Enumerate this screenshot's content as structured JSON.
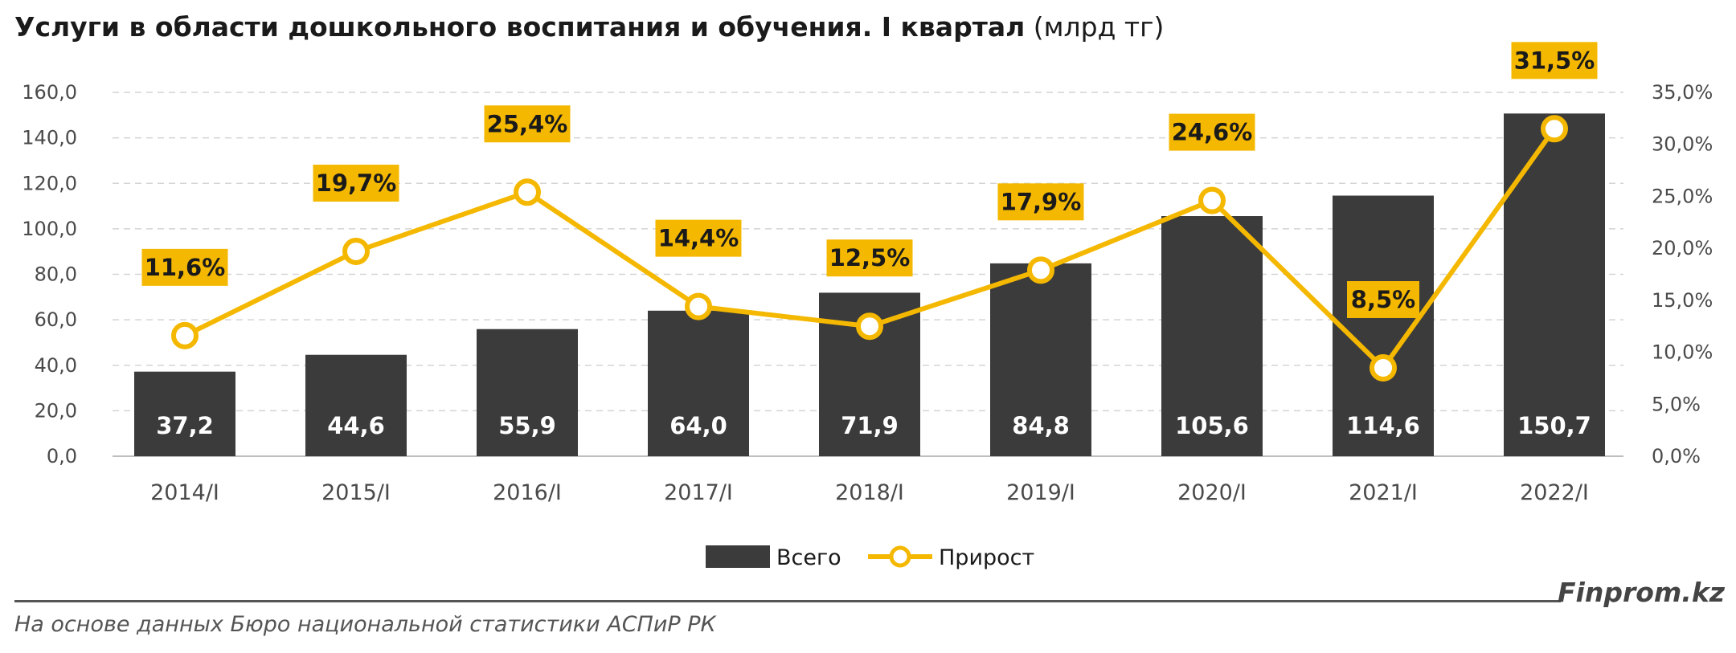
{
  "title": {
    "main": "Услуги в области дошкольного воспитания и обучения. I квартал",
    "unit": "(млрд тг)"
  },
  "chart_data": {
    "type": "bar",
    "categories": [
      "2014/I",
      "2015/I",
      "2016/I",
      "2017/I",
      "2018/I",
      "2019/I",
      "2020/I",
      "2021/I",
      "2022/I"
    ],
    "series": [
      {
        "name": "Всего",
        "type": "bar",
        "axis": "left",
        "color": "#3b3b3b",
        "values": [
          37.2,
          44.6,
          55.9,
          64.0,
          71.9,
          84.8,
          105.6,
          114.6,
          150.7
        ],
        "labels": [
          "37,2",
          "44,6",
          "55,9",
          "64,0",
          "71,9",
          "84,8",
          "105,6",
          "114,6",
          "150,7"
        ]
      },
      {
        "name": "Прирост",
        "type": "line",
        "axis": "right",
        "color": "#f5b800",
        "values": [
          11.6,
          19.7,
          25.4,
          14.4,
          12.5,
          17.9,
          24.6,
          8.5,
          31.5
        ],
        "labels": [
          "11,6%",
          "19,7%",
          "25,4%",
          "14,4%",
          "12,5%",
          "17,9%",
          "24,6%",
          "8,5%",
          "31,5%"
        ]
      }
    ],
    "y_left": {
      "ylim": [
        0,
        160
      ],
      "ticks": [
        "0,0",
        "20,0",
        "40,0",
        "60,0",
        "80,0",
        "100,0",
        "120,0",
        "140,0",
        "160,0"
      ]
    },
    "y_right": {
      "ylim": [
        0,
        35
      ],
      "ticks": [
        "0,0%",
        "5,0%",
        "10,0%",
        "15,0%",
        "20,0%",
        "25,0%",
        "30,0%",
        "35,0%"
      ]
    },
    "grid": true,
    "legend": "bottom-center",
    "label_color": "#f5b800"
  },
  "footer": {
    "brand": "Finprom.kz",
    "source": "На основе данных Бюро национальной статистики АСПиР РК"
  }
}
